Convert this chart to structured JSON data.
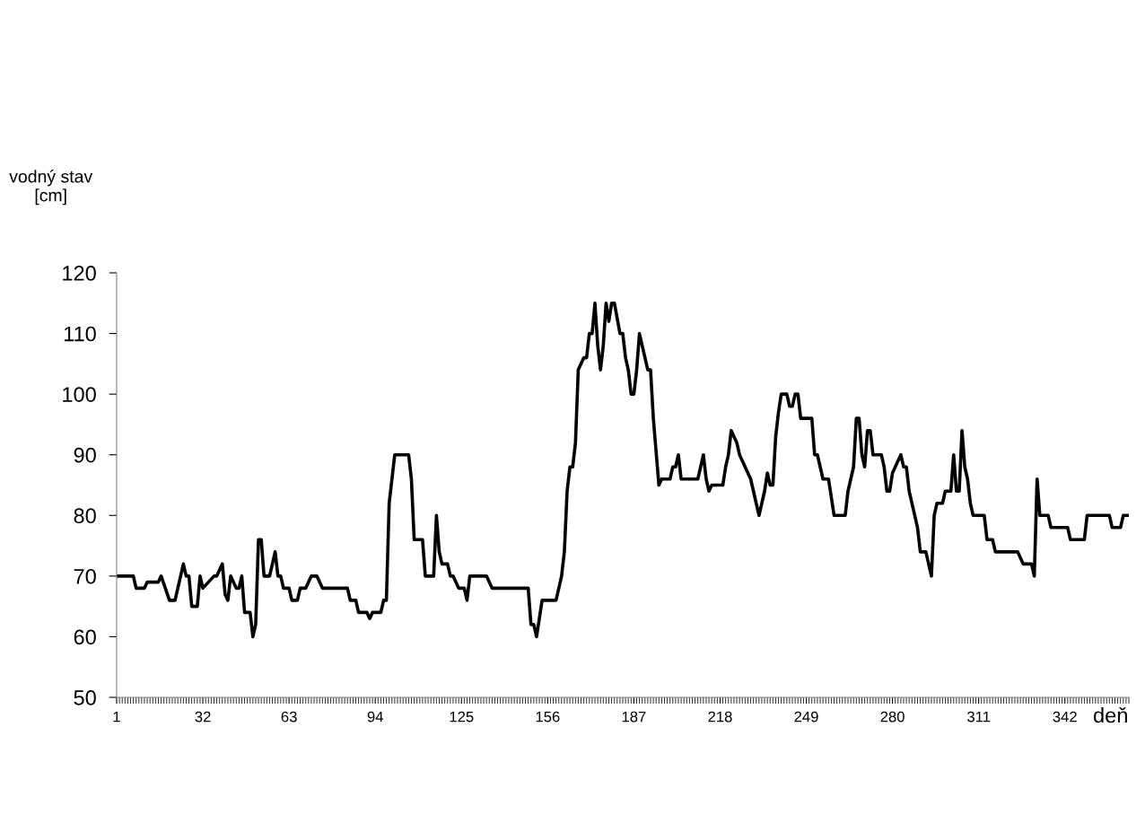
{
  "chart_data": {
    "type": "line",
    "xlabel": "deň",
    "ylabel": "vodný stav\n[cm]",
    "x": [
      1,
      7,
      8,
      11,
      12,
      16,
      17,
      20,
      22,
      25,
      26,
      27,
      28,
      30,
      31,
      32,
      36,
      37,
      39,
      40,
      41,
      42,
      44,
      45,
      46,
      47,
      49,
      50,
      51,
      52,
      53,
      54,
      56,
      58,
      59,
      60,
      61,
      63,
      64,
      66,
      67,
      69,
      71,
      73,
      75,
      84,
      85,
      87,
      88,
      91,
      92,
      93,
      96,
      97,
      98,
      99,
      101,
      106,
      107,
      108,
      111,
      112,
      115,
      116,
      117,
      118,
      120,
      121,
      122,
      124,
      126,
      127,
      128,
      134,
      136,
      149,
      150,
      151,
      152,
      154,
      159,
      161,
      162,
      163,
      164,
      165,
      166,
      167,
      169,
      170,
      171,
      172,
      173,
      174,
      175,
      176,
      177,
      178,
      179,
      180,
      182,
      183,
      184,
      185,
      186,
      187,
      188,
      189,
      192,
      193,
      194,
      196,
      197,
      200,
      201,
      202,
      203,
      204,
      210,
      212,
      213,
      214,
      215,
      219,
      220,
      221,
      222,
      224,
      225,
      229,
      230,
      232,
      234,
      235,
      236,
      237,
      238,
      239,
      240,
      242,
      243,
      244,
      245,
      246,
      247,
      251,
      252,
      253,
      255,
      257,
      259,
      263,
      264,
      266,
      267,
      268,
      269,
      270,
      271,
      272,
      273,
      276,
      277,
      278,
      279,
      280,
      281,
      283,
      284,
      285,
      286,
      289,
      290,
      292,
      294,
      295,
      296,
      298,
      299,
      301,
      302,
      303,
      304,
      305,
      306,
      307,
      308,
      309,
      313,
      314,
      316,
      317,
      325,
      327,
      330,
      331,
      332,
      333,
      336,
      337,
      343,
      344,
      349,
      350,
      358,
      359,
      362,
      363,
      365
    ],
    "series": [
      {
        "color": "#000000",
        "values": [
          70,
          70,
          68,
          68,
          69,
          69,
          70,
          66,
          66,
          72,
          70,
          70,
          65,
          65,
          70,
          68,
          70,
          70,
          72,
          67,
          66,
          70,
          68,
          68,
          70,
          64,
          64,
          60,
          62,
          76,
          76,
          70,
          70,
          74,
          70,
          70,
          68,
          68,
          66,
          66,
          68,
          68,
          70,
          70,
          68,
          68,
          66,
          66,
          64,
          64,
          63,
          64,
          64,
          66,
          66,
          82,
          90,
          90,
          86,
          76,
          76,
          70,
          70,
          80,
          74,
          72,
          72,
          70,
          70,
          68,
          68,
          66,
          70,
          70,
          68,
          68,
          62,
          62,
          60,
          66,
          66,
          70,
          74,
          84,
          88,
          88,
          92,
          104,
          106,
          106,
          110,
          110,
          115,
          108,
          104,
          108,
          115,
          112,
          115,
          115,
          110,
          110,
          106,
          104,
          100,
          100,
          104,
          110,
          104,
          104,
          96,
          85,
          86,
          86,
          88,
          88,
          90,
          86,
          86,
          90,
          86,
          84,
          85,
          85,
          88,
          90,
          94,
          92,
          90,
          86,
          84,
          80,
          84,
          87,
          85,
          85,
          93,
          97,
          100,
          100,
          98,
          98,
          100,
          100,
          96,
          96,
          90,
          90,
          86,
          86,
          80,
          80,
          84,
          88,
          96,
          96,
          90,
          88,
          94,
          94,
          90,
          90,
          88,
          84,
          84,
          87,
          88,
          90,
          88,
          88,
          84,
          78,
          74,
          74,
          70,
          80,
          82,
          82,
          84,
          84,
          90,
          84,
          84,
          94,
          88,
          86,
          82,
          80,
          80,
          76,
          76,
          74,
          74,
          72,
          72,
          70,
          86,
          80,
          80,
          78,
          78,
          76,
          76,
          80,
          80,
          78,
          78,
          80,
          80
        ]
      }
    ],
    "xlim": [
      1,
      365
    ],
    "xticks": [
      1,
      32,
      63,
      94,
      125,
      156,
      187,
      218,
      249,
      280,
      311,
      342
    ],
    "ylim": [
      50,
      120
    ],
    "yticks": [
      50,
      60,
      70,
      80,
      90,
      100,
      110,
      120
    ],
    "grid": false,
    "legend": false,
    "marker": "none",
    "line_style": "solid"
  }
}
